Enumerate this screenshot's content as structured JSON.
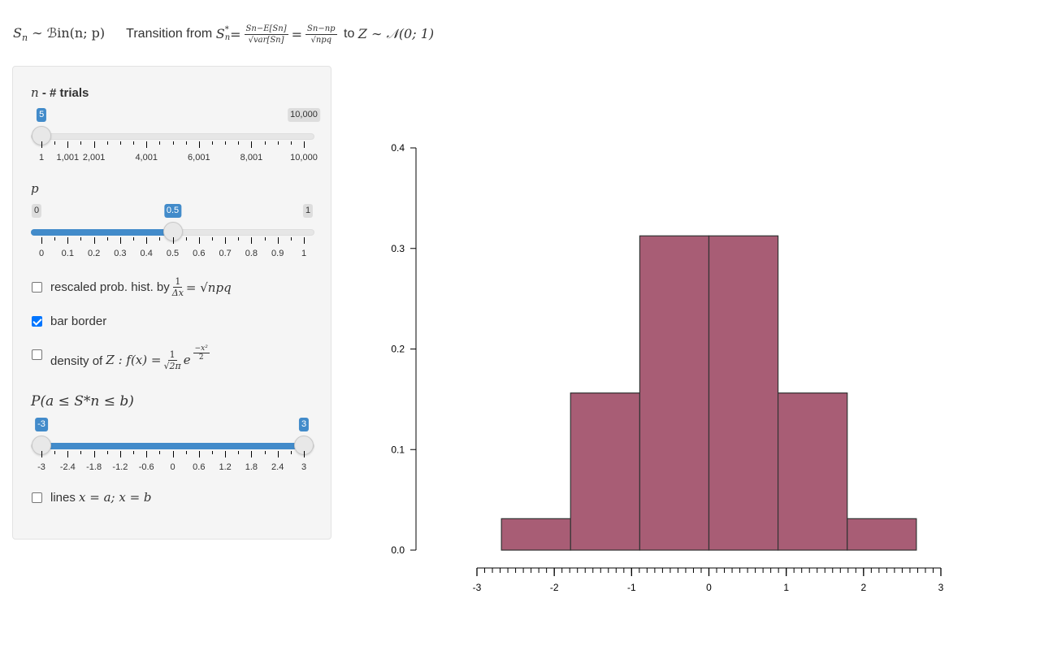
{
  "header": {
    "part1": "S",
    "part1_sub": "n",
    "part1_rest": " ∼ ℬin(n; p)",
    "transition_label": "Transition from",
    "sstar": "S",
    "sstar_sub": "n",
    "sstar_sup": "*",
    "eq1": " = ",
    "frac1_num": "Sn−E[Sn]",
    "frac1_den": "√var[Sn]",
    "eq2": " = ",
    "frac2_num": "Sn−np",
    "frac2_den": "√npq",
    "to_label": "to",
    "target": "Z ∼ 𝒩(0; 1)"
  },
  "controls": {
    "n": {
      "label_math": "n",
      "label_text": "- # trials",
      "value": "5",
      "min": 1,
      "max": 10000,
      "current": 5,
      "min_badge": "1",
      "max_badge": "10,000",
      "tick_labels": [
        "1",
        "1,001",
        "2,001",
        "4,001",
        "6,001",
        "8,001",
        "10,000"
      ],
      "tick_values": [
        1,
        1001,
        2001,
        4001,
        6001,
        8001,
        10000
      ]
    },
    "p": {
      "label_math": "p",
      "value": "0.5",
      "min": 0,
      "max": 1,
      "current": 0.5,
      "min_badge": "0",
      "max_badge": "1",
      "tick_labels": [
        "0",
        "0.1",
        "0.2",
        "0.3",
        "0.4",
        "0.5",
        "0.6",
        "0.7",
        "0.8",
        "0.9",
        "1"
      ]
    },
    "rescaled": {
      "checked": false,
      "label": "rescaled prob. hist. by",
      "frac_num": "1",
      "frac_den": "Δx",
      "eq": " = √npq"
    },
    "bar_border": {
      "checked": true,
      "label": "bar border"
    },
    "density": {
      "checked": false,
      "label": "density of",
      "math": "Z : f(x) =",
      "frac_num": "1",
      "frac_den": "√2π",
      "exp": "e",
      "exp_sup_num": "−x²",
      "exp_sup_den": "2"
    },
    "prob_range": {
      "label_math": "P(a ≤ S*n ≤ b)",
      "min": -3,
      "max": 3,
      "from": -3,
      "to": 3,
      "from_badge": "-3",
      "to_badge": "3",
      "tick_labels": [
        "-3",
        "-2.4",
        "-1.8",
        "-1.2",
        "-0.6",
        "0",
        "0.6",
        "1.2",
        "1.8",
        "2.4",
        "3"
      ]
    },
    "lines": {
      "checked": false,
      "label": "lines",
      "math": "x = a; x = b"
    }
  },
  "chart_data": {
    "type": "bar",
    "title": "",
    "xlabel": "",
    "ylabel": "",
    "bar_color": "#a85d75",
    "bar_border": "#333333",
    "bin_edges": [
      -2.683,
      -1.789,
      -0.894,
      0.0,
      0.894,
      1.789,
      2.683
    ],
    "values": [
      0.03125,
      0.15625,
      0.3125,
      0.3125,
      0.15625,
      0.03125
    ],
    "xlim": [
      -3,
      3
    ],
    "ylim": [
      0,
      0.4
    ],
    "x_ticks": [
      -3,
      -2,
      -1,
      0,
      1,
      2,
      3
    ],
    "x_tick_labels": [
      "-3",
      "-2",
      "-1",
      "0",
      "1",
      "2",
      "3"
    ],
    "y_ticks": [
      0.0,
      0.1,
      0.2,
      0.3,
      0.4
    ],
    "y_tick_labels": [
      "0.0",
      "0.1",
      "0.2",
      "0.3",
      "0.4"
    ],
    "x_minor_step": 0.1
  }
}
